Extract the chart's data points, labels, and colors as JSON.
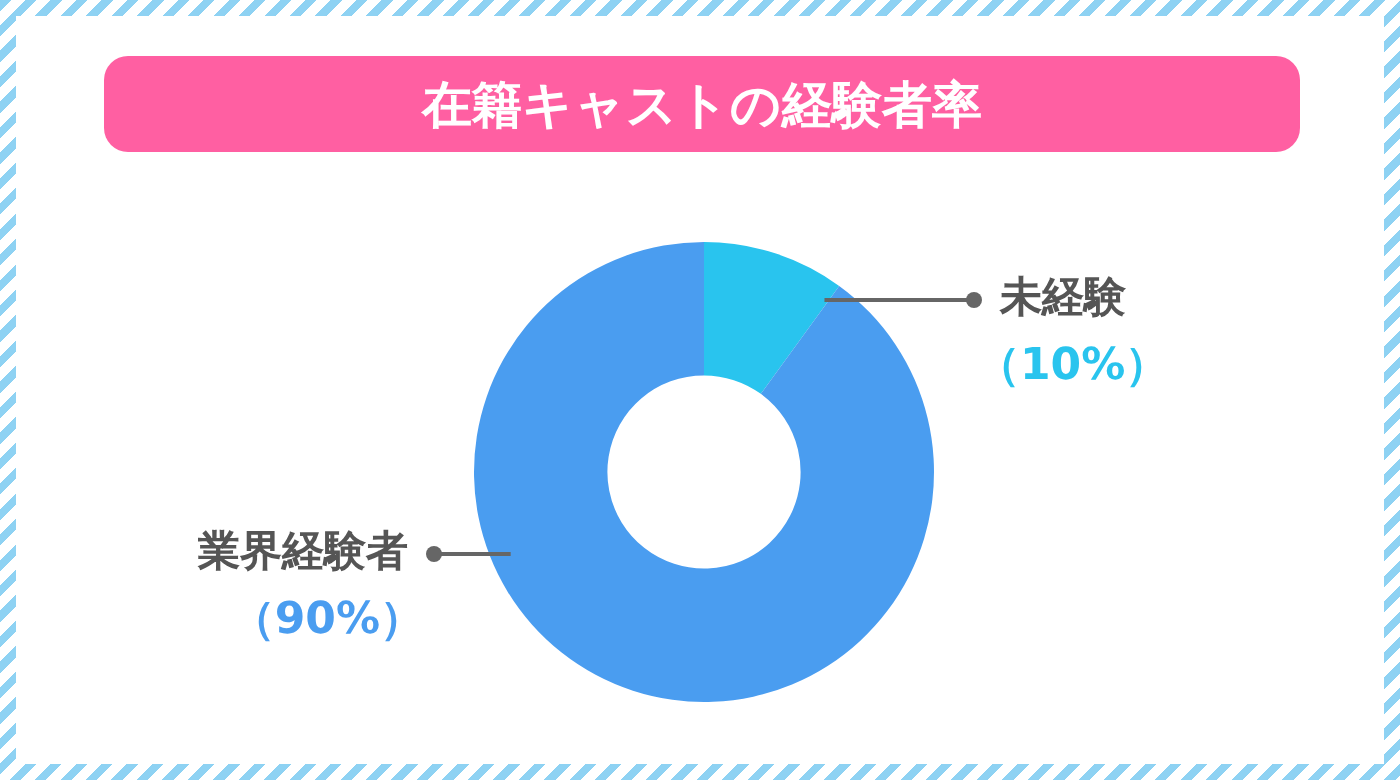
{
  "chart_data": {
    "type": "donut",
    "title": "在籍キャストの経験者率",
    "categories": [
      "未経験",
      "業界経験者"
    ],
    "values": [
      10,
      90
    ],
    "colors": [
      "#29c4ee",
      "#4a9df0"
    ],
    "value_labels": [
      "（10%）",
      "（90%）"
    ],
    "legend": false
  }
}
